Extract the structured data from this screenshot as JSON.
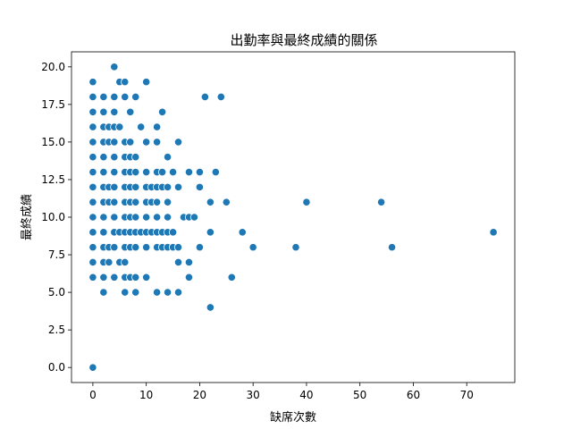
{
  "chart_data": {
    "type": "scatter",
    "title": "出勤率與最終成績的關係",
    "xlabel": "缺席次數",
    "ylabel": "最終成績",
    "xlim": [
      -4,
      79
    ],
    "ylim": [
      -1,
      21
    ],
    "xticks": [
      0,
      10,
      20,
      30,
      40,
      50,
      60,
      70
    ],
    "yticks": [
      0.0,
      2.5,
      5.0,
      7.5,
      10.0,
      12.5,
      15.0,
      17.5,
      20.0
    ],
    "ytick_labels": [
      "0.0",
      "2.5",
      "5.0",
      "7.5",
      "10.0",
      "12.5",
      "15.0",
      "17.5",
      "20.0"
    ],
    "xtick_labels": [
      "0",
      "10",
      "20",
      "30",
      "40",
      "50",
      "60",
      "70"
    ],
    "grid": false,
    "marker_color": "#1f77b4",
    "points": [
      [
        0,
        0
      ],
      [
        0,
        6
      ],
      [
        0,
        7
      ],
      [
        0,
        8
      ],
      [
        0,
        9
      ],
      [
        0,
        10
      ],
      [
        0,
        11
      ],
      [
        0,
        12
      ],
      [
        0,
        13
      ],
      [
        0,
        14
      ],
      [
        0,
        15
      ],
      [
        0,
        16
      ],
      [
        0,
        17
      ],
      [
        0,
        18
      ],
      [
        0,
        19
      ],
      [
        2,
        5
      ],
      [
        2,
        6
      ],
      [
        2,
        7
      ],
      [
        2,
        8
      ],
      [
        2,
        9
      ],
      [
        2,
        10
      ],
      [
        2,
        11
      ],
      [
        2,
        12
      ],
      [
        2,
        13
      ],
      [
        2,
        14
      ],
      [
        2,
        15
      ],
      [
        2,
        16
      ],
      [
        2,
        17
      ],
      [
        2,
        18
      ],
      [
        3,
        7
      ],
      [
        3,
        8
      ],
      [
        3,
        11
      ],
      [
        3,
        12
      ],
      [
        3,
        15
      ],
      [
        3,
        16
      ],
      [
        4,
        6
      ],
      [
        4,
        8
      ],
      [
        4,
        9
      ],
      [
        4,
        10
      ],
      [
        4,
        11
      ],
      [
        4,
        12
      ],
      [
        4,
        13
      ],
      [
        4,
        14
      ],
      [
        4,
        15
      ],
      [
        4,
        16
      ],
      [
        4,
        17
      ],
      [
        4,
        18
      ],
      [
        4,
        20
      ],
      [
        5,
        7
      ],
      [
        5,
        9
      ],
      [
        5,
        16
      ],
      [
        5,
        19
      ],
      [
        6,
        5
      ],
      [
        6,
        6
      ],
      [
        6,
        7
      ],
      [
        6,
        8
      ],
      [
        6,
        9
      ],
      [
        6,
        10
      ],
      [
        6,
        11
      ],
      [
        6,
        12
      ],
      [
        6,
        13
      ],
      [
        6,
        14
      ],
      [
        6,
        15
      ],
      [
        6,
        18
      ],
      [
        6,
        19
      ],
      [
        7,
        6
      ],
      [
        7,
        8
      ],
      [
        7,
        9
      ],
      [
        7,
        10
      ],
      [
        7,
        11
      ],
      [
        7,
        12
      ],
      [
        7,
        13
      ],
      [
        7,
        14
      ],
      [
        7,
        15
      ],
      [
        7,
        17
      ],
      [
        8,
        5
      ],
      [
        8,
        6
      ],
      [
        8,
        8
      ],
      [
        8,
        9
      ],
      [
        8,
        10
      ],
      [
        8,
        11
      ],
      [
        8,
        12
      ],
      [
        8,
        13
      ],
      [
        8,
        14
      ],
      [
        8,
        18
      ],
      [
        9,
        9
      ],
      [
        9,
        16
      ],
      [
        10,
        6
      ],
      [
        10,
        8
      ],
      [
        10,
        9
      ],
      [
        10,
        10
      ],
      [
        10,
        11
      ],
      [
        10,
        12
      ],
      [
        10,
        13
      ],
      [
        10,
        15
      ],
      [
        10,
        19
      ],
      [
        11,
        9
      ],
      [
        11,
        11
      ],
      [
        11,
        12
      ],
      [
        12,
        5
      ],
      [
        12,
        8
      ],
      [
        12,
        9
      ],
      [
        12,
        10
      ],
      [
        12,
        11
      ],
      [
        12,
        12
      ],
      [
        12,
        13
      ],
      [
        12,
        15
      ],
      [
        12,
        16
      ],
      [
        13,
        8
      ],
      [
        13,
        9
      ],
      [
        13,
        12
      ],
      [
        13,
        13
      ],
      [
        13,
        17
      ],
      [
        14,
        5
      ],
      [
        14,
        8
      ],
      [
        14,
        9
      ],
      [
        14,
        10
      ],
      [
        14,
        11
      ],
      [
        14,
        12
      ],
      [
        14,
        14
      ],
      [
        15,
        8
      ],
      [
        15,
        9
      ],
      [
        15,
        13
      ],
      [
        16,
        5
      ],
      [
        16,
        7
      ],
      [
        16,
        8
      ],
      [
        16,
        12
      ],
      [
        16,
        15
      ],
      [
        17,
        10
      ],
      [
        18,
        6
      ],
      [
        18,
        7
      ],
      [
        18,
        10
      ],
      [
        18,
        13
      ],
      [
        19,
        10
      ],
      [
        20,
        8
      ],
      [
        20,
        12
      ],
      [
        20,
        13
      ],
      [
        21,
        18
      ],
      [
        22,
        4
      ],
      [
        22,
        9
      ],
      [
        22,
        11
      ],
      [
        23,
        13
      ],
      [
        24,
        18
      ],
      [
        25,
        11
      ],
      [
        26,
        6
      ],
      [
        28,
        9
      ],
      [
        30,
        8
      ],
      [
        38,
        8
      ],
      [
        40,
        11
      ],
      [
        54,
        11
      ],
      [
        56,
        8
      ],
      [
        75,
        9
      ]
    ]
  }
}
